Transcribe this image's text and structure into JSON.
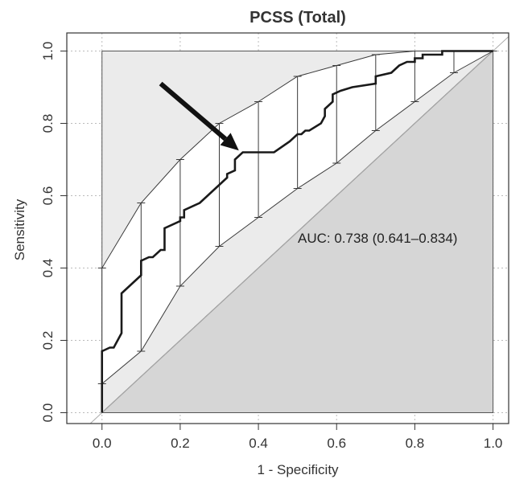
{
  "chart_data": {
    "type": "line",
    "title": "PCSS (Total)",
    "xlabel": "1 - Specificity",
    "ylabel": "Sensitivity",
    "xlim": [
      -0.09,
      1.04
    ],
    "ylim": [
      -0.03,
      1.05
    ],
    "xticks": [
      "0.0",
      "0.2",
      "0.4",
      "0.6",
      "0.8",
      "1.0"
    ],
    "yticks": [
      "0.0",
      "0.2",
      "0.4",
      "0.6",
      "0.8",
      "1.0"
    ],
    "grid": true,
    "annotation": "AUC: 0.738 (0.641–0.834)",
    "colors": {
      "upper_shade": "#ebebeb",
      "lower_shade": "#d6d6d6",
      "roc_line": "#1a1a1a",
      "ci_line": "#3a3a3a",
      "diagonal": "#aaaaaa",
      "arrow": "#111111"
    },
    "series": [
      {
        "role": "roc",
        "x": [
          0,
          0,
          0.02,
          0.03,
          0.05,
          0.05,
          0.08,
          0.1,
          0.1,
          0.12,
          0.13,
          0.15,
          0.16,
          0.16,
          0.2,
          0.2,
          0.21,
          0.21,
          0.25,
          0.27,
          0.3,
          0.32,
          0.32,
          0.34,
          0.34,
          0.36,
          0.36,
          0.44,
          0.48,
          0.5,
          0.51,
          0.52,
          0.53,
          0.56,
          0.57,
          0.57,
          0.59,
          0.59,
          0.61,
          0.64,
          0.7,
          0.7,
          0.74,
          0.75,
          0.76,
          0.78,
          0.8,
          0.8,
          0.82,
          0.82,
          0.87,
          0.87,
          1.0
        ],
        "y": [
          0,
          0.17,
          0.18,
          0.18,
          0.22,
          0.33,
          0.36,
          0.38,
          0.42,
          0.43,
          0.43,
          0.45,
          0.45,
          0.51,
          0.53,
          0.54,
          0.54,
          0.56,
          0.58,
          0.6,
          0.63,
          0.65,
          0.66,
          0.67,
          0.7,
          0.72,
          0.72,
          0.72,
          0.75,
          0.77,
          0.77,
          0.78,
          0.78,
          0.8,
          0.82,
          0.84,
          0.86,
          0.88,
          0.89,
          0.9,
          0.91,
          0.93,
          0.94,
          0.95,
          0.96,
          0.97,
          0.97,
          0.98,
          0.98,
          0.99,
          0.99,
          1.0,
          1.0
        ]
      },
      {
        "role": "ci_upper",
        "x": [
          0,
          0.1,
          0.2,
          0.3,
          0.4,
          0.5,
          0.6,
          0.7,
          0.8,
          0.9,
          1.0
        ],
        "y": [
          0.4,
          0.58,
          0.7,
          0.8,
          0.86,
          0.93,
          0.96,
          0.99,
          1.0,
          1.0,
          1.0
        ]
      },
      {
        "role": "ci_lower",
        "x": [
          0,
          0.1,
          0.2,
          0.3,
          0.4,
          0.5,
          0.6,
          0.7,
          0.8,
          0.9,
          1.0
        ],
        "y": [
          0.08,
          0.17,
          0.35,
          0.46,
          0.54,
          0.62,
          0.69,
          0.78,
          0.86,
          0.94,
          1.0
        ]
      }
    ],
    "arrow": {
      "from": [
        0.15,
        0.91
      ],
      "to": [
        0.35,
        0.725
      ]
    }
  }
}
